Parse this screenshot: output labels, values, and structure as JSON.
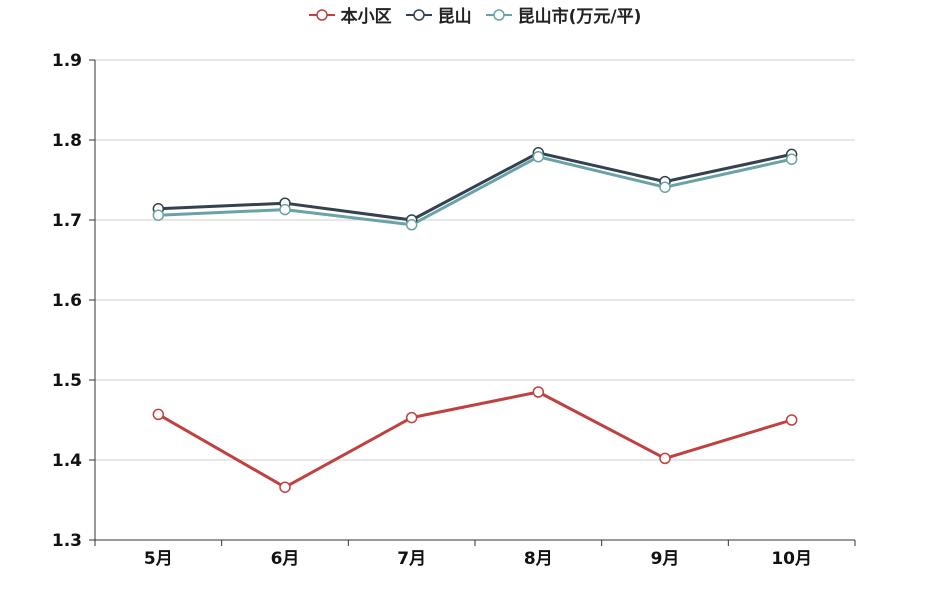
{
  "chart_data": {
    "type": "line",
    "categories": [
      "5月",
      "6月",
      "7月",
      "8月",
      "9月",
      "10月"
    ],
    "series": [
      {
        "name": "本小区",
        "color": "#c0413f",
        "values": [
          1.457,
          1.366,
          1.453,
          1.485,
          1.402,
          1.45
        ]
      },
      {
        "name": "昆山",
        "color": "#34414f",
        "values": [
          1.714,
          1.721,
          1.7,
          1.784,
          1.748,
          1.782
        ]
      },
      {
        "name": "昆山市(万元/平)",
        "color": "#6aa3a7",
        "values": [
          1.706,
          1.713,
          1.694,
          1.779,
          1.741,
          1.776
        ]
      }
    ],
    "ylim": [
      1.3,
      1.9
    ],
    "yticks": [
      "1.3",
      "1.4",
      "1.5",
      "1.6",
      "1.7",
      "1.8",
      "1.9"
    ],
    "grid": true,
    "legend_position": "top-center"
  }
}
